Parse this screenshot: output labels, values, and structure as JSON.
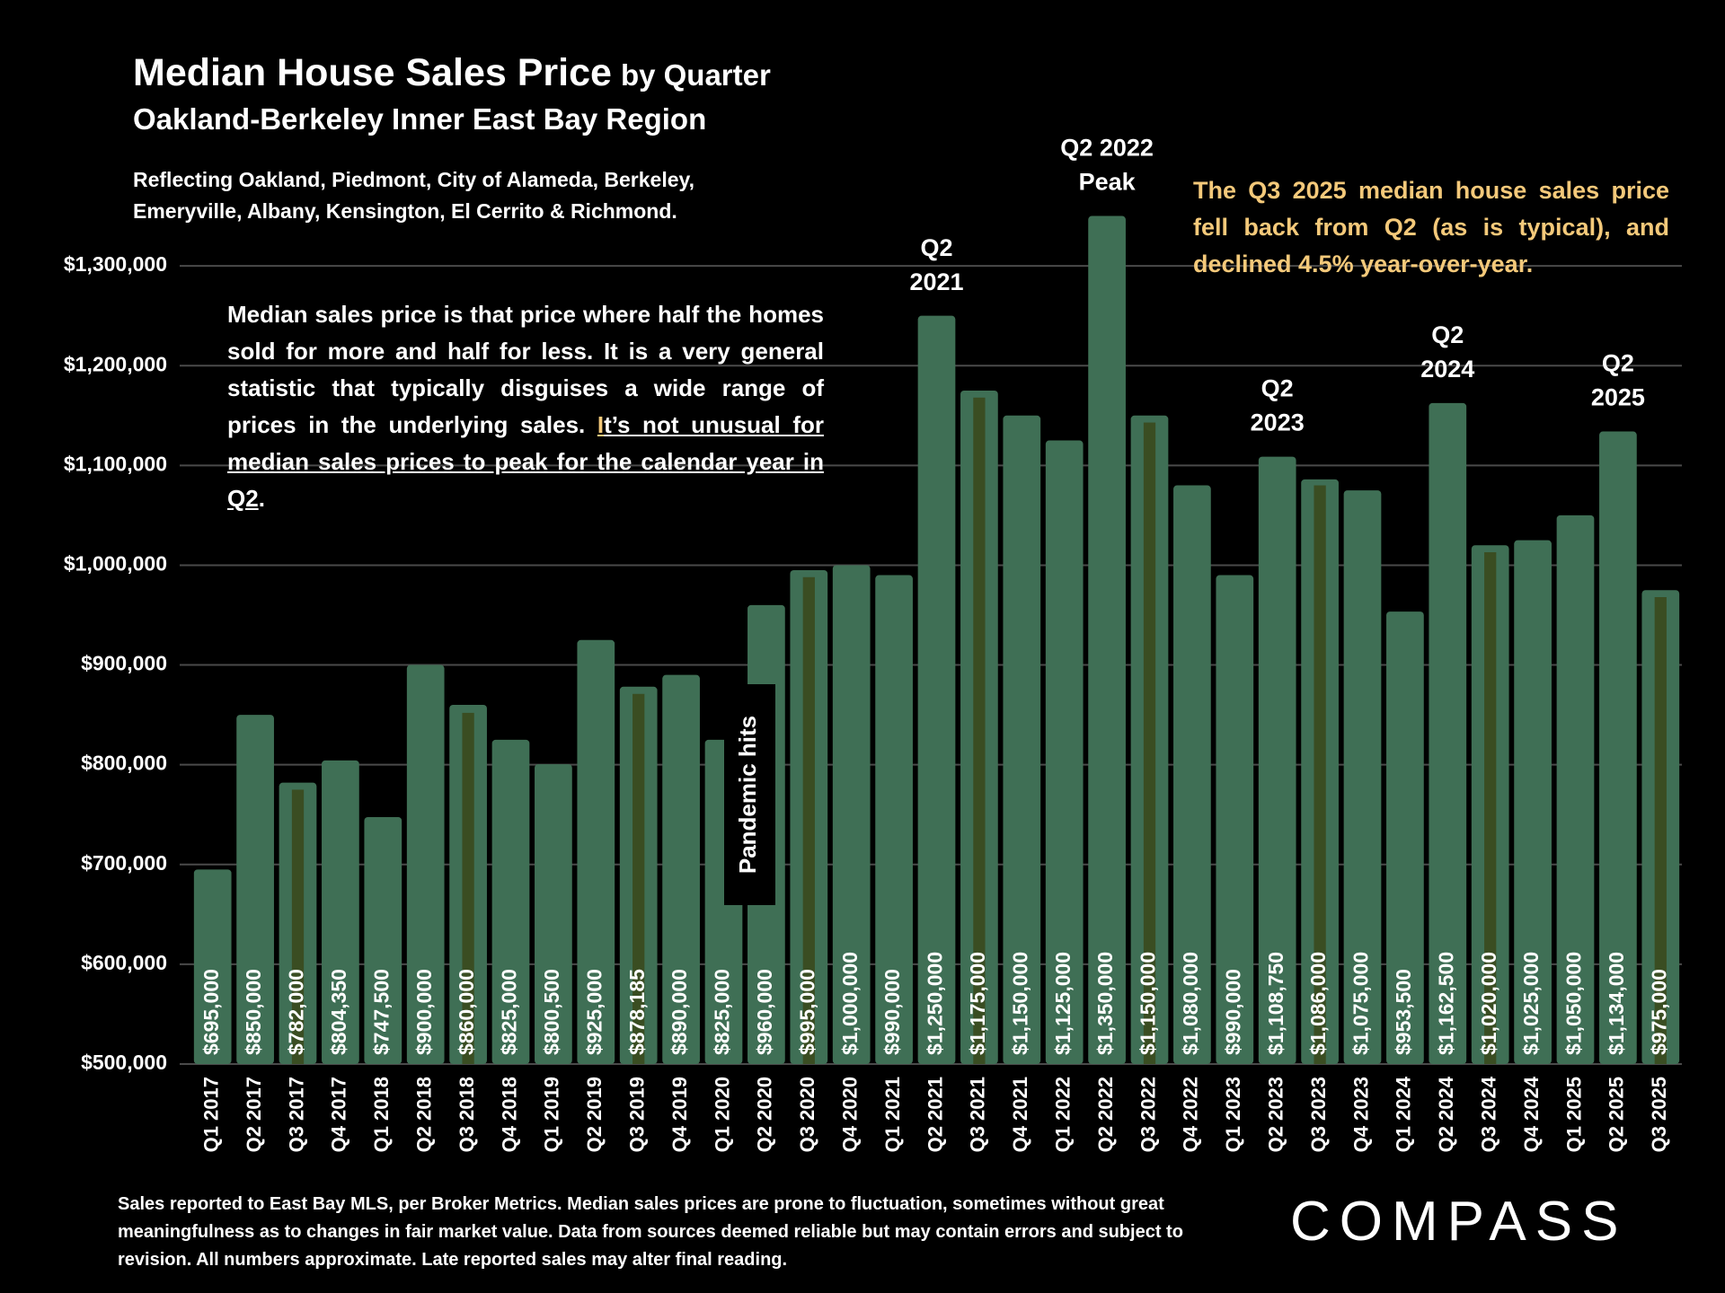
{
  "chart_data": {
    "type": "bar",
    "title": "Median House Sales Price",
    "title_suffix": "by Quarter",
    "subtitle": "Oakland-Berkeley Inner East Bay Region",
    "description": [
      "Reflecting Oakland, Piedmont, City of Alameda, Berkeley,",
      "Emeryville, Albany, Kensington, El Cerrito & Richmond."
    ],
    "categories": [
      "Q1 2017",
      "Q2 2017",
      "Q3 2017",
      "Q4 2017",
      "Q1 2018",
      "Q2 2018",
      "Q3 2018",
      "Q4 2018",
      "Q1 2019",
      "Q2 2019",
      "Q3 2019",
      "Q4 2019",
      "Q1 2020",
      "Q2 2020",
      "Q3 2020",
      "Q4 2020",
      "Q1 2021",
      "Q2 2021",
      "Q3 2021",
      "Q4 2021",
      "Q1 2022",
      "Q2 2022",
      "Q3 2022",
      "Q4 2022",
      "Q1 2023",
      "Q2 2023",
      "Q3 2023",
      "Q4 2023",
      "Q1 2024",
      "Q2 2024",
      "Q3 2024",
      "Q4 2024",
      "Q1 2025",
      "Q2 2025",
      "Q3 2025"
    ],
    "series": [
      {
        "color": "#3f6f55",
        "values": [
          695000,
          850000,
          782000,
          804350,
          747500,
          900000,
          860000,
          825000,
          800500,
          925000,
          878185,
          890000,
          825000,
          960000,
          995000,
          1000000,
          990000,
          1250000,
          1175000,
          1150000,
          1125000,
          1350000,
          1150000,
          1080000,
          990000,
          1108750,
          1086000,
          1075000,
          953500,
          1162500,
          1020000,
          1025000,
          1050000,
          1134000,
          975000
        ],
        "value_labels": [
          "$695,000",
          "$850,000",
          "$782,000",
          "$804,350",
          "$747,500",
          "$900,000",
          "$860,000",
          "$825,000",
          "$800,500",
          "$925,000",
          "$878,185",
          "$890,000",
          "$825,000",
          "$960,000",
          "$995,000",
          "$1,000,000",
          "$990,000",
          "$1,250,000",
          "$1,175,000",
          "$1,150,000",
          "$1,125,000",
          "$1,350,000",
          "$1,150,000",
          "$1,080,000",
          "$990,000",
          "$1,108,750",
          "$1,086,000",
          "$1,075,000",
          "$953,500",
          "$1,162,500",
          "$1,020,000",
          "$1,025,000",
          "$1,050,000",
          "$1,134,000",
          "$975,000"
        ]
      },
      {
        "color": "#3a4d22",
        "values": [
          null,
          null,
          775000,
          null,
          null,
          null,
          852000,
          null,
          null,
          null,
          871000,
          null,
          null,
          null,
          988000,
          null,
          null,
          null,
          1168000,
          null,
          null,
          null,
          1143000,
          null,
          null,
          null,
          1080000,
          null,
          null,
          null,
          1013000,
          null,
          null,
          null,
          968000
        ]
      }
    ],
    "ylim": [
      500000,
      1400000
    ],
    "yticks": [
      {
        "value": 500000,
        "label": "$500,000"
      },
      {
        "value": 600000,
        "label": "$600,000"
      },
      {
        "value": 700000,
        "label": "$700,000"
      },
      {
        "value": 800000,
        "label": "$800,000"
      },
      {
        "value": 900000,
        "label": "$900,000"
      },
      {
        "value": 1000000,
        "label": "$1,000,000"
      },
      {
        "value": 1100000,
        "label": "$1,100,000"
      },
      {
        "value": 1200000,
        "label": "$1,200,000"
      },
      {
        "value": 1300000,
        "label": "$1,300,000"
      }
    ],
    "grid": true,
    "annotations": [
      {
        "lines": [
          "Q2",
          "2021"
        ]
      },
      {
        "lines": [
          "Q2 2022",
          "Peak"
        ]
      },
      {
        "lines": [
          "Q2",
          "2023"
        ]
      },
      {
        "lines": [
          "Q2",
          "2024"
        ]
      },
      {
        "lines": [
          "Q2",
          "2025"
        ]
      }
    ],
    "event_label": "Pandemic hits",
    "note": {
      "text": "Median sales price is that price where half the homes sold for more and half for less. It is a very general statistic that typically disguises a wide range of prices in the underlying sales. ",
      "highlight_letter": "I",
      "underlined": "t’s not unusual for median sales prices to peak for the calendar year in Q2",
      "end": "."
    },
    "callout": "The Q3 2025 median house sales price fell back from Q2 (as is typical), and declined 4.5% year-over-year."
  },
  "footer": "Sales reported to East Bay MLS, per Broker Metrics. Median sales prices are prone to fluctuation, sometimes without great meaningfulness as to changes in fair market value. Data from sources deemed reliable but may contain errors and subject to revision. All numbers approximate. Late reported sales may alter final reading.",
  "logo": "COMPASS"
}
